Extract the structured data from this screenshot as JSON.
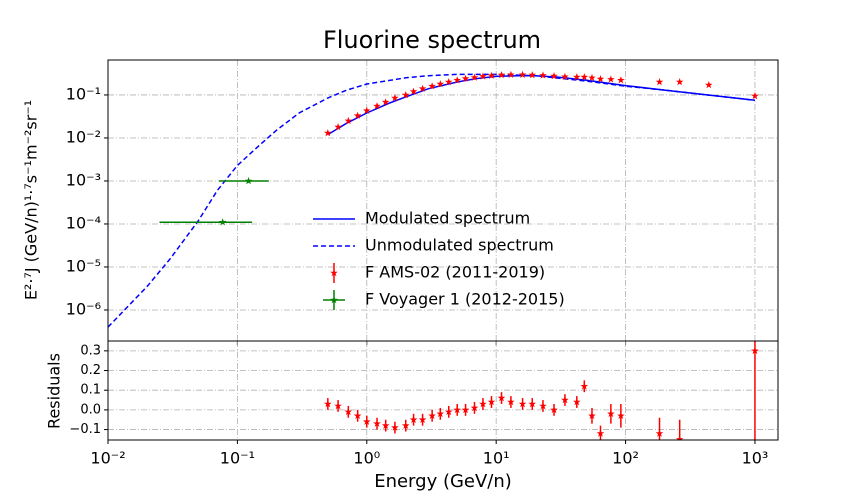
{
  "chart_data": [
    {
      "type": "line",
      "title": "Fluorine spectrum",
      "y_label": "E²·⁷J (GeV/n)¹·⁷s⁻¹m⁻²sr⁻¹",
      "log_x": true,
      "log_y": true,
      "grid": true,
      "legend": "center",
      "xlim": [
        0.01,
        1507
      ],
      "ylim": [
        1.9e-07,
        0.65
      ],
      "xticks": [
        0.01,
        0.1,
        1,
        10,
        100,
        1000
      ],
      "yticks": [
        {
          "value": 1e-06,
          "label": "10⁻⁶"
        },
        {
          "value": 1e-05,
          "label": "10⁻⁵"
        },
        {
          "value": 0.0001,
          "label": "10⁻⁴"
        },
        {
          "value": 0.001,
          "label": "10⁻³"
        },
        {
          "value": 0.01,
          "label": "10⁻²"
        },
        {
          "value": 0.1,
          "label": "10⁻¹"
        }
      ],
      "series": [
        {
          "name": "Modulated spectrum",
          "type": "line",
          "style": "solid",
          "color": "#0000ff",
          "x": [
            0.5,
            0.7,
            1,
            1.5,
            2,
            3,
            5,
            7,
            10,
            15,
            20,
            30,
            50,
            100,
            200,
            500,
            1000
          ],
          "values": [
            0.012,
            0.022,
            0.038,
            0.065,
            0.09,
            0.14,
            0.2,
            0.24,
            0.27,
            0.28,
            0.28,
            0.26,
            0.22,
            0.165,
            0.13,
            0.095,
            0.075
          ]
        },
        {
          "name": "Unmodulated spectrum",
          "type": "line",
          "style": "dashed",
          "color": "#0000ff",
          "x": [
            0.01,
            0.02,
            0.03,
            0.05,
            0.07,
            0.1,
            0.15,
            0.2,
            0.3,
            0.5,
            0.7,
            1,
            2,
            3,
            5,
            10,
            20,
            50,
            100,
            200,
            500,
            1000
          ],
          "values": [
            4e-07,
            3.5e-06,
            1.5e-05,
            0.00012,
            0.0006,
            0.0023,
            0.007,
            0.015,
            0.038,
            0.085,
            0.13,
            0.18,
            0.25,
            0.28,
            0.3,
            0.3,
            0.28,
            0.21,
            0.16,
            0.13,
            0.095,
            0.075
          ]
        },
        {
          "name": "F AMS-02 (2011-2019)",
          "type": "scatter",
          "marker": "star",
          "color": "#ff0000",
          "x": [
            0.5,
            0.6,
            0.72,
            0.85,
            1.0,
            1.2,
            1.4,
            1.65,
            2.0,
            2.3,
            2.7,
            3.2,
            3.7,
            4.3,
            5.0,
            5.8,
            6.8,
            7.9,
            9.2,
            11,
            13,
            16,
            19,
            23,
            28,
            34,
            42,
            48,
            55,
            64,
            77,
            92,
            183,
            262,
            440,
            1000
          ],
          "values": [
            0.013,
            0.018,
            0.025,
            0.033,
            0.043,
            0.055,
            0.068,
            0.085,
            0.1,
            0.12,
            0.14,
            0.16,
            0.18,
            0.2,
            0.22,
            0.24,
            0.255,
            0.27,
            0.28,
            0.29,
            0.295,
            0.295,
            0.29,
            0.285,
            0.275,
            0.265,
            0.26,
            0.26,
            0.25,
            0.235,
            0.23,
            0.22,
            0.2,
            0.2,
            0.17,
            0.095
          ]
        },
        {
          "name": "F Voyager 1 (2012-2015)",
          "type": "errorbar",
          "marker": "star",
          "color": "#008000",
          "x": [
            0.077,
            0.122
          ],
          "x_min": [
            0.025,
            0.072
          ],
          "x_max": [
            0.13,
            0.175
          ],
          "values": [
            0.00011,
            0.001
          ]
        }
      ]
    },
    {
      "type": "errorbar",
      "x_label": "Energy (GeV/n)",
      "y_label": "Residuals",
      "log_x": true,
      "grid": true,
      "xlim": [
        0.01,
        1507
      ],
      "ylim": [
        -0.153,
        0.35
      ],
      "xticks": [
        {
          "value": 0.01,
          "label": "10⁻²"
        },
        {
          "value": 0.1,
          "label": "10⁻¹"
        },
        {
          "value": 1,
          "label": "10⁰"
        },
        {
          "value": 10,
          "label": "10¹"
        },
        {
          "value": 100,
          "label": "10²"
        },
        {
          "value": 1000,
          "label": "10³"
        }
      ],
      "yticks": [
        {
          "value": -0.1,
          "label": "−0.1"
        },
        {
          "value": 0,
          "label": "0.0"
        },
        0.1,
        0.2,
        0.3
      ],
      "series": [
        {
          "color": "#ff0000",
          "x": [
            0.5,
            0.6,
            0.72,
            0.85,
            1.0,
            1.2,
            1.4,
            1.65,
            2.0,
            2.3,
            2.7,
            3.2,
            3.7,
            4.3,
            5.0,
            5.8,
            6.8,
            7.9,
            9.2,
            11,
            13,
            16,
            19,
            23,
            28,
            34,
            42,
            48,
            55,
            64,
            77,
            92,
            183,
            262,
            1000
          ],
          "values": [
            0.03,
            0.02,
            -0.01,
            -0.03,
            -0.06,
            -0.07,
            -0.08,
            -0.09,
            -0.08,
            -0.05,
            -0.05,
            -0.03,
            -0.02,
            -0.01,
            0.0,
            0.0,
            0.01,
            0.03,
            0.04,
            0.06,
            0.04,
            0.03,
            0.03,
            0.02,
            0.0,
            0.05,
            0.04,
            0.12,
            -0.03,
            -0.12,
            -0.02,
            -0.03,
            -0.12,
            -0.15,
            0.3
          ],
          "errors": [
            0.03,
            0.03,
            0.03,
            0.03,
            0.03,
            0.03,
            0.03,
            0.03,
            0.03,
            0.03,
            0.03,
            0.03,
            0.03,
            0.03,
            0.03,
            0.03,
            0.03,
            0.03,
            0.03,
            0.03,
            0.03,
            0.03,
            0.03,
            0.03,
            0.03,
            0.03,
            0.03,
            0.03,
            0.04,
            0.04,
            0.05,
            0.06,
            0.08,
            0.1,
            0.5
          ]
        }
      ]
    }
  ]
}
